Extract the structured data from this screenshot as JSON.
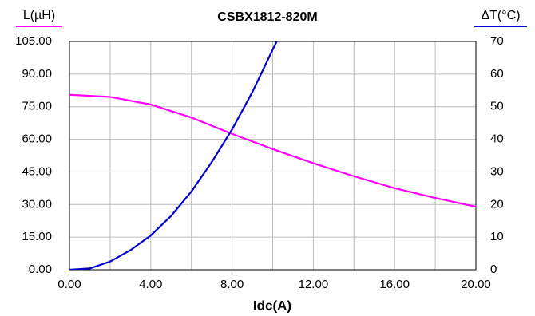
{
  "chart_data": {
    "type": "line",
    "title": "CSBX1812-820M",
    "xlabel": "Idc(A)",
    "ylabel": "L(µH)",
    "y2label": "ΔT(°C)",
    "xlim": [
      0,
      20
    ],
    "xticks": [
      {
        "value": 0,
        "label": "0.00"
      },
      {
        "value": 4,
        "label": "4.00"
      },
      {
        "value": 8,
        "label": "8.00"
      },
      {
        "value": 12,
        "label": "12.00"
      },
      {
        "value": 16,
        "label": "16.00"
      },
      {
        "value": 20,
        "label": "20.00"
      }
    ],
    "xminor_ticks": [
      2,
      6,
      10,
      14,
      18
    ],
    "ylim": [
      0,
      105
    ],
    "yticks": [
      {
        "value": 0,
        "label": "0.00"
      },
      {
        "value": 15,
        "label": "15.00"
      },
      {
        "value": 30,
        "label": "30.00"
      },
      {
        "value": 45,
        "label": "45.00"
      },
      {
        "value": 60,
        "label": "60.00"
      },
      {
        "value": 75,
        "label": "75.00"
      },
      {
        "value": 90,
        "label": "90.00"
      },
      {
        "value": 105,
        "label": "105.00"
      }
    ],
    "y2lim": [
      0,
      70
    ],
    "y2ticks": [
      0,
      10,
      20,
      30,
      40,
      50,
      60,
      70
    ],
    "grid": true,
    "series": [
      {
        "name": "L(µH)",
        "color": "#ff00ff",
        "axis": "y",
        "x": [
          0,
          2,
          4,
          6,
          8,
          10,
          12,
          14,
          16,
          18,
          20
        ],
        "values": [
          80.5,
          79.5,
          76,
          70,
          62.5,
          55.5,
          49,
          43,
          37.5,
          33,
          29
        ]
      },
      {
        "name": "ΔT(°C)",
        "color": "#0000cc",
        "axis": "y2",
        "x": [
          0,
          1,
          2,
          3,
          4,
          5,
          6,
          7,
          8,
          9,
          10,
          10.2
        ],
        "values": [
          0,
          0.4,
          2.5,
          6,
          10.5,
          16.5,
          24,
          33,
          43,
          54.5,
          67.5,
          70
        ]
      }
    ]
  }
}
